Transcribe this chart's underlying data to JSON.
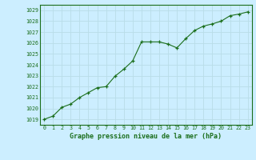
{
  "x": [
    0,
    1,
    2,
    3,
    4,
    5,
    6,
    7,
    8,
    9,
    10,
    11,
    12,
    13,
    14,
    15,
    16,
    17,
    18,
    19,
    20,
    21,
    22,
    23
  ],
  "y": [
    1019.0,
    1019.3,
    1020.1,
    1020.4,
    1021.0,
    1021.45,
    1021.9,
    1022.0,
    1022.95,
    1023.6,
    1024.35,
    1026.1,
    1026.1,
    1026.1,
    1025.9,
    1025.55,
    1026.4,
    1027.15,
    1027.55,
    1027.75,
    1028.0,
    1028.5,
    1028.65,
    1028.85
  ],
  "line_color": "#1a6e1a",
  "marker": "+",
  "marker_color": "#1a6e1a",
  "bg_color": "#cceeff",
  "grid_color": "#b8dde8",
  "xlabel": "Graphe pression niveau de la mer (hPa)",
  "xlabel_color": "#1a6e1a",
  "tick_color": "#1a6e1a",
  "ylim": [
    1018.5,
    1029.5
  ],
  "yticks": [
    1019,
    1020,
    1021,
    1022,
    1023,
    1024,
    1025,
    1026,
    1027,
    1028,
    1029
  ],
  "xlim": [
    -0.5,
    23.5
  ],
  "xticks": [
    0,
    1,
    2,
    3,
    4,
    5,
    6,
    7,
    8,
    9,
    10,
    11,
    12,
    13,
    14,
    15,
    16,
    17,
    18,
    19,
    20,
    21,
    22,
    23
  ]
}
